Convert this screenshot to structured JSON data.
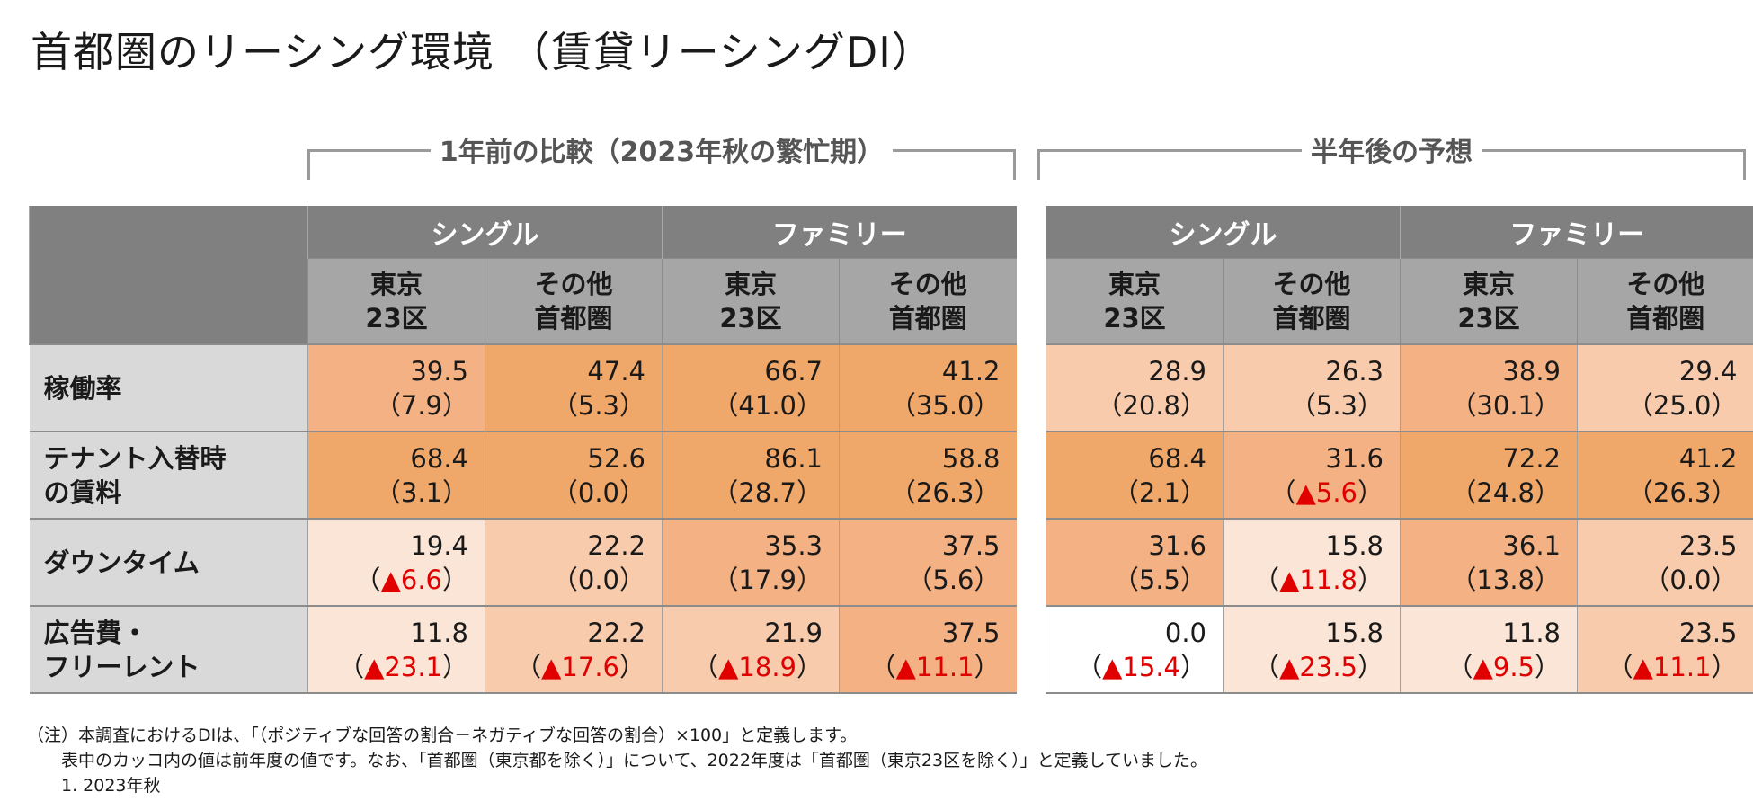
{
  "title": "首都圏のリーシング環境 （賃貸リーシングDI）",
  "groups": {
    "left": "1年前の比較（2023年秋の繁忙期）",
    "right": "半年後の予想"
  },
  "headers": {
    "single": "シングル",
    "family": "ファミリー",
    "tokyo_l1": "東京",
    "tokyo_l2": "23区",
    "other_l1": "その他",
    "other_l2": "首都圏"
  },
  "rows": [
    {
      "label_l1": "稼働率",
      "label_l2": "",
      "left": [
        {
          "v": "39.5",
          "p": "（7.9）",
          "neg": "",
          "level": "l3"
        },
        {
          "v": "47.4",
          "p": "（5.3）",
          "neg": "",
          "level": "l4"
        },
        {
          "v": "66.7",
          "p": "（41.0）",
          "neg": "",
          "level": "l4"
        },
        {
          "v": "41.2",
          "p": "（35.0）",
          "neg": "",
          "level": "l4"
        }
      ],
      "right": [
        {
          "v": "28.9",
          "p": "（20.8）",
          "neg": "",
          "level": "l2"
        },
        {
          "v": "26.3",
          "p": "（5.3）",
          "neg": "",
          "level": "l2"
        },
        {
          "v": "38.9",
          "p": "（30.1）",
          "neg": "",
          "level": "l3"
        },
        {
          "v": "29.4",
          "p": "（25.0）",
          "neg": "",
          "level": "l2"
        }
      ]
    },
    {
      "label_l1": "テナント入替時",
      "label_l2": "の賃料",
      "left": [
        {
          "v": "68.4",
          "p": "（3.1）",
          "neg": "",
          "level": "l4"
        },
        {
          "v": "52.6",
          "p": "（0.0）",
          "neg": "",
          "level": "l4"
        },
        {
          "v": "86.1",
          "p": "（28.7）",
          "neg": "",
          "level": "l4"
        },
        {
          "v": "58.8",
          "p": "（26.3）",
          "neg": "",
          "level": "l4"
        }
      ],
      "right": [
        {
          "v": "68.4",
          "p": "（2.1）",
          "neg": "",
          "level": "l4"
        },
        {
          "v": "31.6",
          "p": "",
          "neg": "▲5.6",
          "level": "l3"
        },
        {
          "v": "72.2",
          "p": "（24.8）",
          "neg": "",
          "level": "l4"
        },
        {
          "v": "41.2",
          "p": "（26.3）",
          "neg": "",
          "level": "l4"
        }
      ]
    },
    {
      "label_l1": "ダウンタイム",
      "label_l2": "",
      "left": [
        {
          "v": "19.4",
          "p": "",
          "neg": "▲6.6",
          "level": "l1"
        },
        {
          "v": "22.2",
          "p": "（0.0）",
          "neg": "",
          "level": "l2"
        },
        {
          "v": "35.3",
          "p": "（17.9）",
          "neg": "",
          "level": "l3"
        },
        {
          "v": "37.5",
          "p": "（5.6）",
          "neg": "",
          "level": "l3"
        }
      ],
      "right": [
        {
          "v": "31.6",
          "p": "（5.5）",
          "neg": "",
          "level": "l3"
        },
        {
          "v": "15.8",
          "p": "",
          "neg": "▲11.8",
          "level": "l1"
        },
        {
          "v": "36.1",
          "p": "（13.8）",
          "neg": "",
          "level": "l3"
        },
        {
          "v": "23.5",
          "p": "（0.0）",
          "neg": "",
          "level": "l2"
        }
      ]
    },
    {
      "label_l1": "広告費・",
      "label_l2": "フリーレント",
      "left": [
        {
          "v": "11.8",
          "p": "",
          "neg": "▲23.1",
          "level": "l1"
        },
        {
          "v": "22.2",
          "p": "",
          "neg": "▲17.6",
          "level": "l2"
        },
        {
          "v": "21.9",
          "p": "",
          "neg": "▲18.9",
          "level": "l2"
        },
        {
          "v": "37.5",
          "p": "",
          "neg": "▲11.1",
          "level": "l3"
        }
      ],
      "right": [
        {
          "v": "0.0",
          "p": "",
          "neg": "▲15.4",
          "level": "l0"
        },
        {
          "v": "15.8",
          "p": "",
          "neg": "▲23.5",
          "level": "l1"
        },
        {
          "v": "11.8",
          "p": "",
          "neg": "▲9.5",
          "level": "l1"
        },
        {
          "v": "23.5",
          "p": "",
          "neg": "▲11.1",
          "level": "l2"
        }
      ]
    }
  ],
  "notes": {
    "n1": "（注）本調査におけるDIは、「（ポジティブな回答の割合－ネガティブな回答の割合）×100」と定義します。",
    "n2": "　　表中のカッコ内の値は前年度の値です。なお、「首都圏（東京都を除く）」について、2022年度は「首都圏（東京23区を除く）」と定義していました。",
    "n3": "　　1.  2023年秋"
  }
}
